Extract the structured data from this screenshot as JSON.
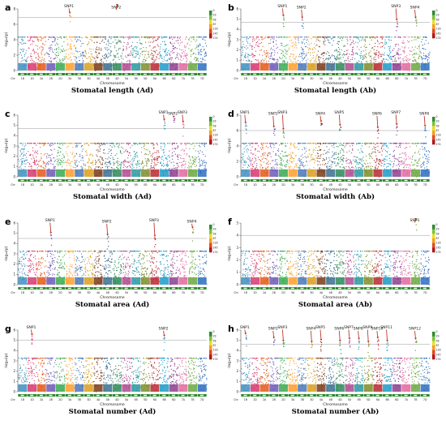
{
  "chart_data": [
    {
      "type": "scatter",
      "panel": "a",
      "title": "Stomatal length (Ad)",
      "xlabel": "Chromosome",
      "ylabel": "-log₁₀(p)",
      "ylim": [
        0,
        8
      ],
      "threshold": 6.9,
      "yticks": [
        0,
        2,
        4,
        6,
        8
      ],
      "peaks": [
        {
          "label": "SNP1",
          "chr": 6,
          "y": 7.3
        },
        {
          "label": "SNP2",
          "chr": 11,
          "y": 8.6
        }
      ],
      "legend_ticks": [
        "0",
        "29",
        "58",
        "87",
        "116",
        "145",
        "174"
      ]
    },
    {
      "type": "scatter",
      "panel": "b",
      "title": "Stomatal length (Ab)",
      "xlabel": "Chromosome",
      "ylabel": "-log₁₀(p)",
      "ylim": [
        0,
        6
      ],
      "threshold": 4.7,
      "yticks": [
        0,
        1,
        2,
        3,
        4,
        5,
        6
      ],
      "peaks": [
        {
          "label": "SNP1",
          "chr": 5,
          "y": 5.2
        },
        {
          "label": "SNP2",
          "chr": 7,
          "y": 5.0
        },
        {
          "label": "SNP3",
          "chr": 17,
          "y": 4.8
        },
        {
          "label": "SNP4",
          "chr": 19,
          "y": 5.0
        }
      ],
      "legend_ticks": [
        "0",
        "29",
        "58",
        "87",
        "116",
        "145",
        "174"
      ]
    },
    {
      "type": "scatter",
      "panel": "c",
      "title": "Stomatal width (Ad)",
      "xlabel": "Chromosome",
      "ylabel": "-log₁₀(p)",
      "ylim": [
        0,
        6
      ],
      "threshold": 4.7,
      "yticks": [
        0,
        1,
        2,
        3,
        4,
        5,
        6
      ],
      "peaks": [
        {
          "label": "SNP1",
          "chr": 16,
          "y": 5.4
        },
        {
          "label": "SNP2",
          "chr": 17,
          "y": 5.7
        },
        {
          "label": "SNP3",
          "chr": 18,
          "y": 5.2
        }
      ],
      "legend_ticks": [
        "0",
        "29",
        "58",
        "87",
        "116",
        "145",
        "174"
      ]
    },
    {
      "type": "scatter",
      "panel": "d",
      "title": "Stomatal width (Ab)",
      "xlabel": "Chromosome",
      "ylabel": "-log₁₀(p)",
      "ylim": [
        0,
        8
      ],
      "threshold": 6.0,
      "yticks": [
        0,
        2,
        4,
        6,
        8
      ],
      "peaks": [
        {
          "label": "SNP1",
          "chr": 1,
          "y": 6.8
        },
        {
          "label": "SNP2",
          "chr": 4,
          "y": 6.3
        },
        {
          "label": "SNP3",
          "chr": 5,
          "y": 6.0
        },
        {
          "label": "SNP4",
          "chr": 9,
          "y": 7.0
        },
        {
          "label": "SNP5",
          "chr": 11,
          "y": 6.5
        },
        {
          "label": "SNP6",
          "chr": 15,
          "y": 6.2
        },
        {
          "label": "SNP7",
          "chr": 17,
          "y": 6.6
        },
        {
          "label": "SNP8",
          "chr": 20,
          "y": 6.4
        }
      ],
      "legend_ticks": [
        "0",
        "29",
        "58",
        "87",
        "116",
        "145",
        "174"
      ]
    },
    {
      "type": "scatter",
      "panel": "e",
      "title": "Stomatal area (Ad)",
      "xlabel": "Chromosome",
      "ylabel": "-log₁₀(p)",
      "ylim": [
        0,
        6
      ],
      "threshold": 4.5,
      "yticks": [
        0,
        1,
        2,
        3,
        4,
        5,
        6
      ],
      "peaks": [
        {
          "label": "SNP1",
          "chr": 4,
          "y": 4.9
        },
        {
          "label": "SNP2",
          "chr": 10,
          "y": 4.7
        },
        {
          "label": "SNP3",
          "chr": 15,
          "y": 4.6
        },
        {
          "label": "SNP4",
          "chr": 19,
          "y": 5.4
        }
      ],
      "legend_ticks": [
        "0",
        "29",
        "58",
        "87",
        "116",
        "145",
        "174"
      ]
    },
    {
      "type": "scatter",
      "panel": "f",
      "title": "Stomatal area (Ab)",
      "xlabel": "Chromosome",
      "ylabel": "-log₁₀(p)",
      "ylim": [
        0,
        5
      ],
      "threshold": 4.0,
      "yticks": [
        0,
        1,
        2,
        3,
        4,
        5
      ],
      "peaks": [
        {
          "label": "SNP1",
          "chr": 19,
          "y": 5.4
        }
      ],
      "legend_ticks": [
        "0",
        "29",
        "58",
        "87",
        "116",
        "145",
        "174"
      ]
    },
    {
      "type": "scatter",
      "panel": "g",
      "title": "Stomatal number (Ad)",
      "xlabel": "Chromosome",
      "ylabel": "-log₁₀(p)",
      "ylim": [
        0,
        6
      ],
      "threshold": 5.0,
      "yticks": [
        0,
        1,
        2,
        3,
        4,
        5,
        6
      ],
      "peaks": [
        {
          "label": "SNP1",
          "chr": 2,
          "y": 5.4
        },
        {
          "label": "SNP2",
          "chr": 16,
          "y": 5.3
        }
      ],
      "legend_ticks": [
        "0",
        "29",
        "58",
        "87",
        "116",
        "145",
        "174"
      ]
    },
    {
      "type": "scatter",
      "panel": "h",
      "title": "Stomatal number (Ab)",
      "xlabel": "Chromosome",
      "ylabel": "-log₁₀(p)",
      "ylim": [
        0,
        6
      ],
      "threshold": 4.6,
      "yticks": [
        0,
        1,
        2,
        3,
        4,
        5,
        6
      ],
      "peaks": [
        {
          "label": "SNP1",
          "chr": 1,
          "y": 5.5
        },
        {
          "label": "SNP2",
          "chr": 4,
          "y": 5.1
        },
        {
          "label": "SNP3",
          "chr": 5,
          "y": 4.8
        },
        {
          "label": "SNP4",
          "chr": 8,
          "y": 4.7
        },
        {
          "label": "SNP5",
          "chr": 9,
          "y": 4.9
        },
        {
          "label": "SNP6",
          "chr": 11,
          "y": 4.8
        },
        {
          "label": "SNP7",
          "chr": 12,
          "y": 5.0
        },
        {
          "label": "SNP8",
          "chr": 13,
          "y": 5.0
        },
        {
          "label": "SNP9",
          "chr": 14,
          "y": 4.7
        },
        {
          "label": "SNP10",
          "chr": 15,
          "y": 5.1
        },
        {
          "label": "SNP11",
          "chr": 16,
          "y": 4.8
        },
        {
          "label": "SNP12",
          "chr": 19,
          "y": 5.0
        }
      ],
      "legend_ticks": [
        "0",
        "29",
        "58",
        "87",
        "116",
        "145",
        "174"
      ]
    }
  ],
  "chromosomes": [
    "Chr",
    "1B",
    "1D",
    "2A",
    "2B",
    "2D",
    "3A",
    "3B",
    "3D",
    "4A",
    "4B",
    "4D",
    "5A",
    "5B",
    "5D",
    "6A",
    "6B",
    "6D",
    "7A",
    "7B",
    "7D"
  ],
  "colors": {
    "series": [
      "#e8c800",
      "#3f8fbf",
      "#d63a6e",
      "#e25a1a",
      "#6e5ab8",
      "#3aaa52",
      "#ff9f2a",
      "#4a78b8",
      "#d9a020",
      "#7a3a1a",
      "#3a6e8e",
      "#2e8a5a",
      "#b04a8e",
      "#2a98a0",
      "#7e8e2a",
      "#b82830",
      "#1e9ac8",
      "#8e3e8e",
      "#e06aa0",
      "#6aa840",
      "#2e6ec0"
    ],
    "threshold": "#999999",
    "chrom_bar": "#2e8b2e"
  }
}
